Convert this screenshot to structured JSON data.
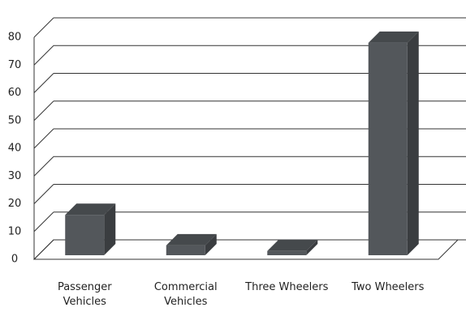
{
  "chart_data": {
    "type": "bar3d",
    "categories": [
      "Passenger Vehicles",
      "Commercial Vehicles",
      "Three Wheelers",
      "Two Wheelers"
    ],
    "values": [
      16,
      5,
      3,
      78
    ],
    "color": "#53575b",
    "ylim": [
      0,
      80
    ],
    "yticks": [
      0,
      10,
      20,
      30,
      40,
      50,
      60,
      70,
      80
    ],
    "grid": true
  }
}
